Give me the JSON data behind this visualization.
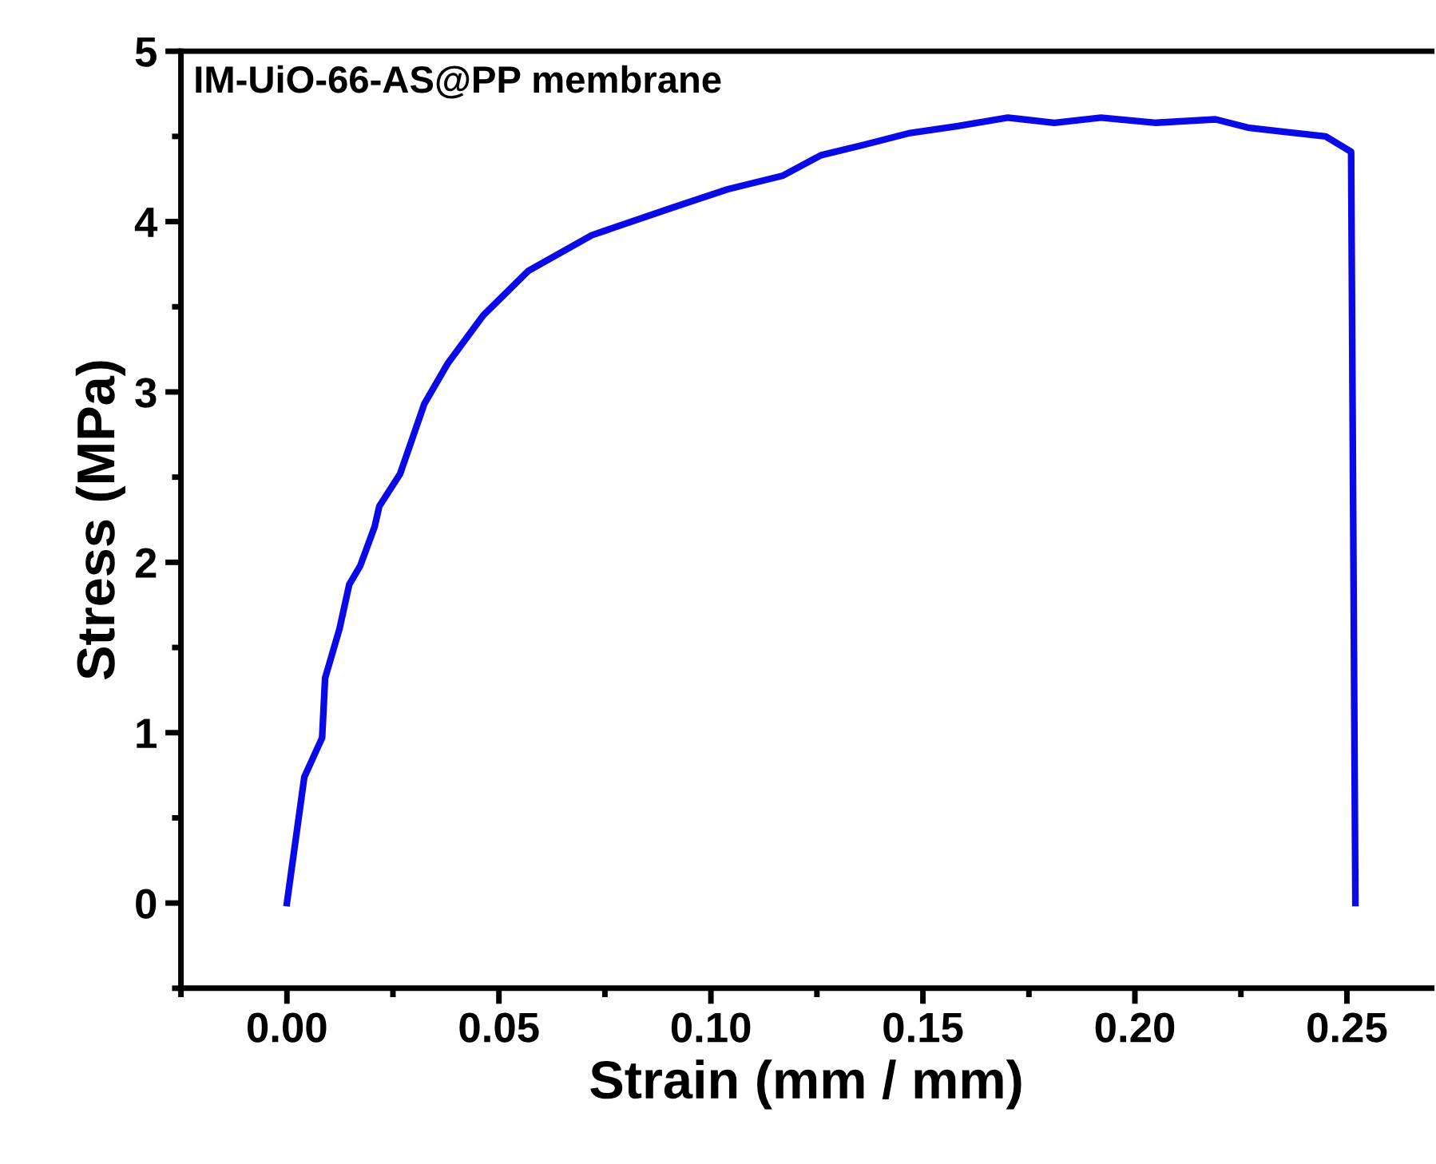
{
  "chart_data": {
    "type": "line",
    "xlabel": "Strain (mm / mm)",
    "ylabel": "Stress (MPa)",
    "annotations": [
      "IM-UiO-66-AS@PP membrane"
    ],
    "xlim": [
      -0.025,
      0.27
    ],
    "ylim": [
      -0.5,
      5
    ],
    "xticks": [
      {
        "value": 0.0,
        "label": "0.00"
      },
      {
        "value": 0.05,
        "label": "0.05"
      },
      {
        "value": 0.1,
        "label": "0.10"
      },
      {
        "value": 0.15,
        "label": "0.15"
      },
      {
        "value": 0.2,
        "label": "0.20"
      },
      {
        "value": 0.25,
        "label": "0.25"
      }
    ],
    "yticks": [
      0,
      1,
      2,
      3,
      4,
      5
    ],
    "grid": false,
    "legend": false,
    "marker": "none",
    "line_style": "solid",
    "series": [
      {
        "color": "#0a0ae6",
        "x": [
          0,
          0.0041,
          0.0083,
          0.009,
          0.0124,
          0.0147,
          0.0173,
          0.0207,
          0.0218,
          0.0267,
          0.0324,
          0.038,
          0.0463,
          0.0569,
          0.0719,
          0.0907,
          0.104,
          0.117,
          0.126,
          0.136,
          0.147,
          0.158,
          0.17,
          0.181,
          0.192,
          0.205,
          0.219,
          0.227,
          0.234,
          0.245,
          0.251,
          0.252
        ],
        "values": [
          0,
          0.74,
          0.97,
          1.32,
          1.61,
          1.87,
          1.98,
          2.21,
          2.33,
          2.52,
          2.93,
          3.17,
          3.45,
          3.71,
          3.92,
          4.08,
          4.19,
          4.27,
          4.39,
          4.45,
          4.52,
          4.56,
          4.61,
          4.58,
          4.61,
          4.58,
          4.6,
          4.55,
          4.53,
          4.5,
          4.41,
          0
        ]
      }
    ]
  }
}
